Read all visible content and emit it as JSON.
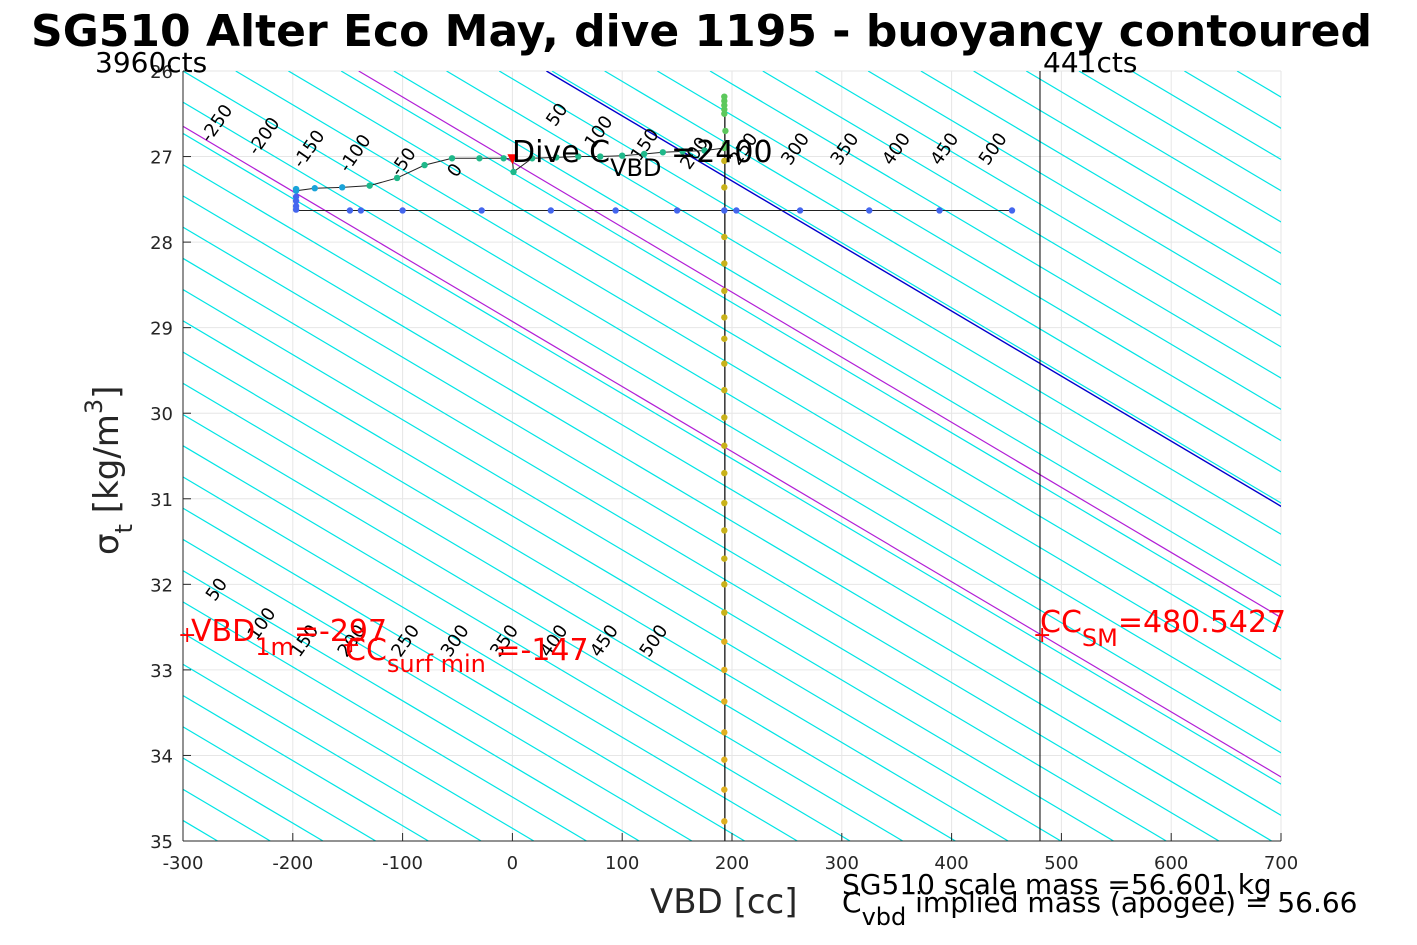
{
  "chart_data": {
    "type": "scatter",
    "title": "SG510 Alter Eco May, dive 1195 - buoyancy contoured",
    "xlabel": "VBD [cc]",
    "ylabel": {
      "main": "σ",
      "sub": "t",
      "unit_pre": " [kg/m",
      "unit_sup": "3",
      "unit_post": "]"
    },
    "xlim": [
      -300,
      700
    ],
    "ylim": [
      26,
      35
    ],
    "y_reversed": true,
    "grid": true,
    "x_ticks": [
      -300,
      -200,
      -100,
      0,
      100,
      200,
      300,
      400,
      500,
      600,
      700
    ],
    "y_ticks": [
      26,
      27,
      28,
      29,
      30,
      31,
      32,
      33,
      34,
      35
    ],
    "corner_labels": {
      "left": "3960cts",
      "right": "441cts"
    },
    "vertical_lines": [
      {
        "vbd": 480.5,
        "color": "#000000"
      }
    ],
    "contour_slope_cc_per_sigma": 131.5,
    "buoyancy_contours": {
      "cyan_levels": [
        -250,
        -200,
        -150,
        -100,
        -50,
        50,
        100,
        150,
        200,
        250,
        300,
        350,
        400,
        450,
        500
      ],
      "blue_level": 0,
      "magenta_levels": [
        -100,
        -200
      ],
      "upper_labels": [
        {
          "text": "-250",
          "vbd": -265,
          "sigma": 26.65
        },
        {
          "text": "-200",
          "vbd": -222,
          "sigma": 26.8
        },
        {
          "text": "-150",
          "vbd": -181,
          "sigma": 26.95
        },
        {
          "text": "-100",
          "vbd": -139,
          "sigma": 27.0
        },
        {
          "text": "-50",
          "vbd": -95,
          "sigma": 27.1
        },
        {
          "text": "0",
          "vbd": -48,
          "sigma": 27.2
        },
        {
          "text": "50",
          "vbd": 45,
          "sigma": 26.55
        },
        {
          "text": "100",
          "vbd": 83,
          "sigma": 26.75
        },
        {
          "text": "150",
          "vbd": 125,
          "sigma": 26.9
        },
        {
          "text": "200",
          "vbd": 170,
          "sigma": 27.0
        },
        {
          "text": "250",
          "vbd": 215,
          "sigma": 26.95
        },
        {
          "text": "300",
          "vbd": 262,
          "sigma": 26.95
        },
        {
          "text": "350",
          "vbd": 307,
          "sigma": 26.95
        },
        {
          "text": "400",
          "vbd": 354,
          "sigma": 26.95
        },
        {
          "text": "450",
          "vbd": 398,
          "sigma": 26.95
        },
        {
          "text": "500",
          "vbd": 442,
          "sigma": 26.95
        }
      ],
      "lower_labels": [
        {
          "text": "50",
          "vbd": -265,
          "sigma": 32.1
        },
        {
          "text": "100",
          "vbd": -224,
          "sigma": 32.5
        },
        {
          "text": "150",
          "vbd": -185,
          "sigma": 32.7
        },
        {
          "text": "200",
          "vbd": -142,
          "sigma": 32.7
        },
        {
          "text": "250",
          "vbd": -93,
          "sigma": 32.7
        },
        {
          "text": "300",
          "vbd": -48,
          "sigma": 32.7
        },
        {
          "text": "350",
          "vbd": -3,
          "sigma": 32.7
        },
        {
          "text": "400",
          "vbd": 42,
          "sigma": 32.7
        },
        {
          "text": "450",
          "vbd": 88,
          "sigma": 32.7
        },
        {
          "text": "500",
          "vbd": 133,
          "sigma": 32.7
        }
      ]
    },
    "series": [
      {
        "name": "dive",
        "points": [
          [
            -197,
            27.38
          ],
          [
            -197,
            27.4
          ],
          [
            -180,
            27.37
          ],
          [
            -155,
            27.36
          ],
          [
            -130,
            27.34
          ],
          [
            -105,
            27.25
          ],
          [
            -80,
            27.1
          ],
          [
            -55,
            27.02
          ],
          [
            -30,
            27.02
          ],
          [
            -8,
            27.02
          ],
          [
            0,
            27.03
          ],
          [
            1,
            27.18
          ],
          [
            18,
            27.02
          ],
          [
            40,
            27.01
          ],
          [
            60,
            27.0
          ],
          [
            80,
            27.0
          ],
          [
            100,
            26.99
          ],
          [
            120,
            26.97
          ],
          [
            137,
            26.95
          ],
          [
            155,
            26.94
          ],
          [
            175,
            26.93
          ],
          [
            193,
            26.9
          ],
          [
            193,
            26.3
          ],
          [
            193,
            26.35
          ],
          [
            193,
            26.4
          ],
          [
            193,
            26.45
          ],
          [
            193,
            26.5
          ],
          [
            194,
            26.7
          ],
          [
            194,
            26.85
          ]
        ]
      },
      {
        "name": "climb",
        "points": [
          [
            -197,
            27.62
          ],
          [
            -197,
            27.58
          ],
          [
            -197,
            27.52
          ],
          [
            -197,
            27.47
          ],
          [
            -148,
            27.63
          ],
          [
            -138,
            27.63
          ],
          [
            -100,
            27.63
          ],
          [
            -28,
            27.63
          ],
          [
            35,
            27.63
          ],
          [
            94,
            27.63
          ],
          [
            150,
            27.63
          ],
          [
            193,
            27.63
          ],
          [
            204,
            27.63
          ],
          [
            262,
            27.63
          ],
          [
            325,
            27.63
          ],
          [
            389,
            27.63
          ],
          [
            455,
            27.63
          ]
        ]
      },
      {
        "name": "deep",
        "points": [
          [
            193,
            27.05
          ],
          [
            193,
            27.36
          ],
          [
            193,
            27.94
          ],
          [
            193,
            28.25
          ],
          [
            193,
            28.57
          ],
          [
            193,
            28.88
          ],
          [
            193,
            29.13
          ],
          [
            193,
            29.42
          ],
          [
            193,
            29.73
          ],
          [
            193,
            30.05
          ],
          [
            193,
            30.38
          ],
          [
            193,
            30.7
          ],
          [
            193,
            31.05
          ],
          [
            193,
            31.37
          ],
          [
            193,
            31.7
          ],
          [
            193,
            32.0
          ],
          [
            193,
            32.33
          ],
          [
            193,
            32.67
          ],
          [
            193,
            33.0
          ],
          [
            193,
            33.37
          ],
          [
            193,
            33.73
          ],
          [
            193,
            34.05
          ],
          [
            193,
            34.4
          ],
          [
            193,
            34.77
          ]
        ]
      }
    ],
    "annotations": {
      "dive_c": {
        "pre": "Dive C",
        "sub": "VBD",
        "post": " =2400",
        "vbd": 0,
        "sigma": 27.05
      },
      "vbd_1m": {
        "pre": "VBD",
        "sub": "1m",
        "post": "=-297",
        "vbd": -297,
        "sigma": 32.62
      },
      "cc_surf_min": {
        "pre": "CC",
        "sub": "surf min",
        "post": " =-147",
        "vbd": -147,
        "sigma": 32.72
      },
      "cc_sm": {
        "pre": "CC",
        "sub": "SM",
        "post": "=480.5427",
        "vbd": 480.5,
        "sigma": 32.62
      }
    },
    "footer": {
      "scale_mass": "SG510 scale mass =56.601 kg",
      "implied_pre": "C",
      "implied_sub": "vbd",
      "implied_post": " implied mass (apogee) = 56.66"
    },
    "colors": {
      "contour": "#00e5e5",
      "zero_contour": "#0000cc",
      "magenta_contour": "#b21fd6",
      "annotation": "#ff0000",
      "dive_points": "#1fb88a",
      "climb_points": "#4466ee",
      "deep_points": "#c9b21a",
      "grid": "#e6e6e6"
    }
  }
}
